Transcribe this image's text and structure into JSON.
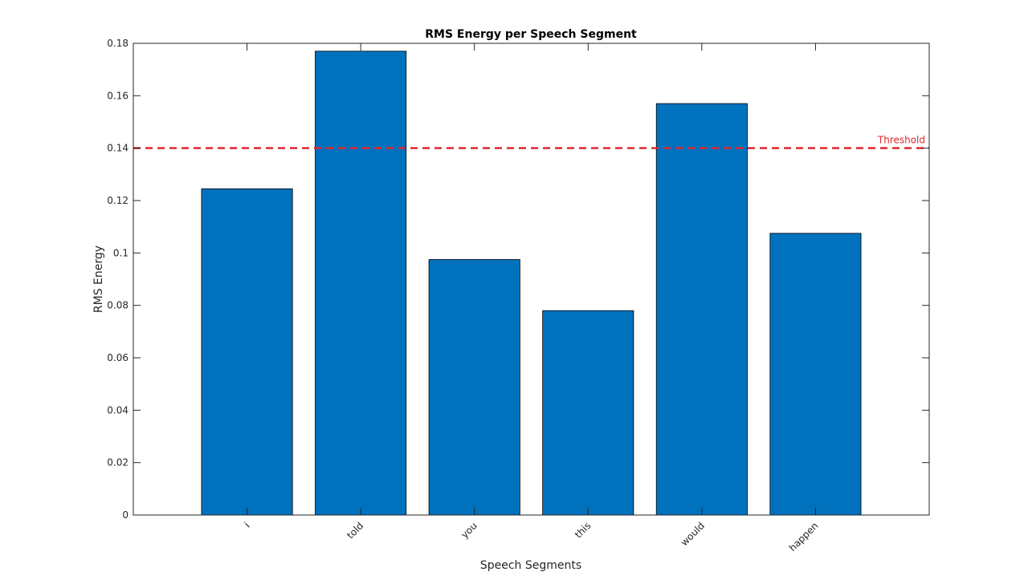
{
  "chart_data": {
    "type": "bar",
    "title": "RMS Energy per Speech Segment",
    "xlabel": "Speech Segments",
    "ylabel": "RMS Energy",
    "categories": [
      "i",
      "told",
      "you",
      "this",
      "would",
      "happen"
    ],
    "values": [
      0.1245,
      0.177,
      0.0975,
      0.078,
      0.157,
      0.1075
    ],
    "ylim": [
      0,
      0.18
    ],
    "yticks": [
      0,
      0.02,
      0.04,
      0.06,
      0.08,
      0.1,
      0.12,
      0.14,
      0.16,
      0.18
    ],
    "ytick_labels": [
      "0",
      "0.02",
      "0.04",
      "0.06",
      "0.08",
      "0.1",
      "0.12",
      "0.14",
      "0.16",
      "0.18"
    ],
    "grid": false,
    "bar_color": "#0072BD",
    "threshold": {
      "value": 0.14,
      "label": "Threshold",
      "color": "#E0282E",
      "style": "dashed"
    }
  }
}
